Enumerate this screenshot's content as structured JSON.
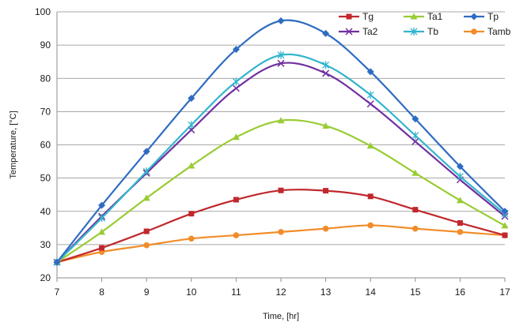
{
  "chart_data": {
    "type": "line",
    "title": "",
    "xlabel": "Time, [hr]",
    "ylabel": "Temperature, [°C]",
    "x": [
      7,
      8,
      9,
      10,
      11,
      12,
      13,
      14,
      15,
      16,
      17
    ],
    "xlim": [
      7,
      17
    ],
    "ylim": [
      20,
      100
    ],
    "xticks": [
      "7",
      "8",
      "9",
      "10",
      "11",
      "12",
      "13",
      "14",
      "15",
      "16",
      "17"
    ],
    "yticks": [
      "20",
      "30",
      "40",
      "50",
      "60",
      "70",
      "80",
      "90",
      "100"
    ],
    "grid": "horizontal",
    "legend_position": "top-right",
    "series": [
      {
        "name": "Tg",
        "color": "#C0282D",
        "marker": "square",
        "values": [
          24.7,
          29,
          34,
          39.3,
          43.5,
          46.3,
          46.2,
          44.5,
          40.5,
          36.5,
          32.8
        ]
      },
      {
        "name": "Ta1",
        "color": "#99CC33",
        "marker": "triangle",
        "values": [
          24.7,
          33.8,
          44,
          53.7,
          62.3,
          67.3,
          65.7,
          59.7,
          51.5,
          43.3,
          35.7
        ]
      },
      {
        "name": "Tp",
        "color": "#2E6CC2",
        "marker": "diamond",
        "values": [
          24.7,
          41.8,
          58,
          74,
          88.7,
          97.3,
          93.5,
          82,
          67.8,
          53.5,
          40
        ]
      },
      {
        "name": "Ta2",
        "color": "#7030A0",
        "marker": "x",
        "values": [
          24.7,
          38.5,
          51.5,
          64.5,
          77,
          84.5,
          81.5,
          72.3,
          61,
          49.5,
          38.5
        ]
      },
      {
        "name": "Tb",
        "color": "#33B5CC",
        "marker": "star",
        "values": [
          24.7,
          38,
          52,
          66,
          79,
          87,
          84,
          75,
          62.8,
          50.5,
          39.3
        ]
      },
      {
        "name": "Tamb",
        "color": "#F28C28",
        "marker": "circle",
        "values": [
          24.7,
          27.8,
          29.8,
          31.8,
          32.8,
          33.8,
          34.8,
          35.8,
          34.8,
          33.8,
          32.8
        ]
      }
    ]
  }
}
